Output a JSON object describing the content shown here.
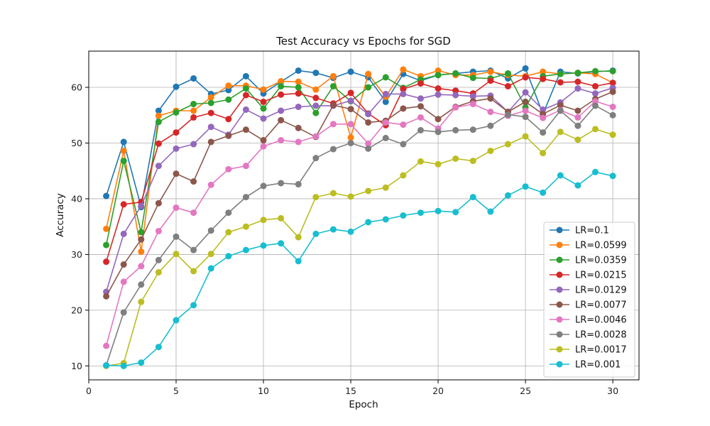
{
  "chart_data": {
    "type": "line",
    "title": "Test Accuracy vs Epochs for SGD",
    "xlabel": "Epoch",
    "ylabel": "Accuracy",
    "xlim": [
      0,
      31.5
    ],
    "ylim": [
      7.5,
      66.5
    ],
    "xticks": [
      0,
      5,
      10,
      15,
      20,
      25,
      30
    ],
    "yticks": [
      10,
      20,
      30,
      40,
      50,
      60
    ],
    "grid": true,
    "legend_position": "lower-right",
    "markers": "circle",
    "x": [
      1,
      2,
      3,
      4,
      5,
      6,
      7,
      8,
      9,
      10,
      11,
      12,
      13,
      14,
      15,
      16,
      17,
      18,
      19,
      20,
      21,
      22,
      23,
      24,
      25,
      26,
      27,
      28,
      29,
      30
    ],
    "series": [
      {
        "name": "LR=0.1",
        "color": "#1f77b4",
        "values": [
          40.5,
          50.2,
          38.5,
          55.8,
          60.1,
          61.6,
          58.8,
          59.5,
          62.0,
          58.9,
          61.0,
          63.0,
          62.6,
          61.7,
          62.8,
          61.8,
          57.4,
          62.4,
          61.2,
          62.2,
          62.5,
          62.8,
          63.0,
          61.6,
          63.4,
          55.2,
          62.8,
          62.5,
          62.8,
          63.0
        ]
      },
      {
        "name": "LR=0.0599",
        "color": "#ff7f0e",
        "values": [
          34.6,
          48.6,
          30.5,
          54.9,
          55.8,
          55.8,
          58.2,
          60.3,
          60.3,
          59.6,
          61.1,
          61.0,
          59.6,
          62.0,
          51.0,
          62.4,
          58.3,
          63.2,
          62.0,
          63.0,
          62.2,
          62.2,
          62.8,
          62.2,
          62.0,
          62.8,
          62.4,
          62.6,
          62.4,
          60.8
        ]
      },
      {
        "name": "LR=0.0359",
        "color": "#2ca02c",
        "values": [
          31.7,
          46.8,
          34.0,
          53.8,
          55.5,
          57.0,
          57.2,
          57.8,
          59.8,
          56.2,
          60.2,
          60.0,
          55.4,
          60.2,
          57.5,
          60.0,
          61.8,
          59.9,
          61.4,
          62.2,
          62.5,
          61.7,
          61.6,
          62.5,
          56.4,
          62.0,
          62.4,
          62.6,
          62.9,
          62.9
        ]
      },
      {
        "name": "LR=0.0215",
        "color": "#d62728",
        "values": [
          28.7,
          39.0,
          39.4,
          49.9,
          51.9,
          54.6,
          55.4,
          54.3,
          58.6,
          57.4,
          58.7,
          58.9,
          58.1,
          57.1,
          59.0,
          55.3,
          53.2,
          59.7,
          60.7,
          59.8,
          59.4,
          58.9,
          61.2,
          60.2,
          61.8,
          61.5,
          60.9,
          61.0,
          60.2,
          60.8
        ]
      },
      {
        "name": "LR=0.0129",
        "color": "#9467bd",
        "values": [
          23.3,
          33.7,
          38.7,
          45.9,
          49.0,
          49.8,
          52.9,
          51.5,
          56.0,
          54.4,
          55.8,
          56.5,
          56.7,
          56.7,
          57.6,
          55.2,
          58.8,
          58.8,
          58.0,
          58.7,
          58.6,
          58.4,
          58.5,
          55.6,
          59.1,
          56.0,
          57.3,
          59.8,
          58.9,
          59.9
        ]
      },
      {
        "name": "LR=0.0077",
        "color": "#8c564b",
        "values": [
          22.5,
          28.2,
          32.7,
          39.2,
          44.5,
          43.1,
          50.2,
          51.3,
          52.4,
          50.5,
          54.1,
          52.7,
          51.1,
          56.8,
          56.1,
          53.7,
          54.0,
          56.2,
          56.6,
          54.3,
          56.5,
          57.5,
          58.0,
          55.6,
          57.4,
          55.2,
          56.8,
          55.8,
          57.9,
          59.2
        ]
      },
      {
        "name": "LR=0.0046",
        "color": "#e377c2",
        "values": [
          13.6,
          25.1,
          27.9,
          34.2,
          38.4,
          37.5,
          42.5,
          45.3,
          45.9,
          49.4,
          50.5,
          50.2,
          51.2,
          53.4,
          53.4,
          49.9,
          53.7,
          53.3,
          54.6,
          52.6,
          56.4,
          57.0,
          55.6,
          54.9,
          55.8,
          54.5,
          55.9,
          54.6,
          57.5,
          56.5
        ]
      },
      {
        "name": "LR=0.0028",
        "color": "#7f7f7f",
        "values": [
          10.1,
          19.6,
          24.6,
          29.0,
          33.2,
          30.8,
          34.3,
          37.5,
          40.3,
          42.3,
          42.8,
          42.6,
          47.3,
          48.9,
          50.0,
          49.0,
          50.9,
          49.8,
          52.3,
          52.0,
          52.3,
          52.4,
          53.1,
          55.1,
          54.7,
          51.9,
          55.8,
          53.1,
          56.7,
          55.0
        ]
      },
      {
        "name": "LR=0.0017",
        "color": "#bcbd22",
        "values": [
          10.0,
          10.5,
          21.5,
          26.8,
          30.1,
          27.0,
          30.1,
          34.0,
          35.0,
          36.2,
          36.5,
          33.1,
          40.3,
          41.0,
          40.4,
          41.4,
          42.0,
          44.2,
          46.7,
          46.2,
          47.2,
          46.8,
          48.6,
          49.8,
          51.2,
          48.2,
          52.0,
          50.6,
          52.5,
          51.5
        ]
      },
      {
        "name": "LR=0.001",
        "color": "#17becf",
        "values": [
          10.1,
          10.0,
          10.6,
          13.4,
          18.2,
          20.9,
          27.5,
          29.7,
          30.8,
          31.6,
          32.0,
          28.8,
          33.7,
          34.5,
          34.1,
          35.8,
          36.3,
          37.0,
          37.5,
          37.8,
          37.6,
          40.3,
          37.7,
          40.6,
          42.2,
          41.1,
          44.2,
          42.4,
          44.8,
          44.1
        ]
      }
    ]
  }
}
